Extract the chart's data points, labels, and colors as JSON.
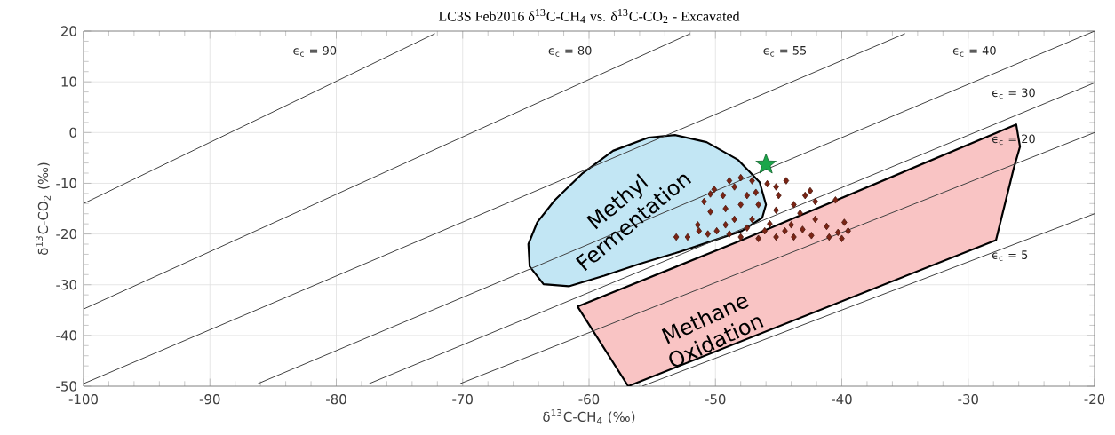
{
  "chart_data": {
    "type": "scatter",
    "title": "LC3S Feb2016 δ$^{13}$C-CH$_{4}$ vs. δ$^{13}$C-CO$_{2}$ - Excavated",
    "xlabel": "δ$^{13}$C-CH$_{4}$ (‰)",
    "ylabel": "δ$^{13}$C-CO$_{2}$ (‰)",
    "xlim": [
      -100,
      -20
    ],
    "ylim": [
      -50,
      20
    ],
    "xticks": [
      -100,
      -90,
      -80,
      -70,
      -60,
      -50,
      -40,
      -30,
      -20
    ],
    "yticks": [
      -50,
      -40,
      -30,
      -20,
      -10,
      0,
      10,
      20
    ],
    "grid": true,
    "series": [
      {
        "type": "area",
        "color": "#c2e6f4",
        "x": [
          -63.6,
          -64.7,
          -64.8,
          -64.1,
          -62.7,
          -60.5,
          -58.1,
          -55.3,
          -53.2,
          -50.7,
          -48.2,
          -46.5,
          -46.0,
          -46.3,
          -47.9,
          -50.4,
          -53.2,
          -56.0,
          -58.8,
          -61.6
        ],
        "values": [
          -29.9,
          -26.4,
          -22.0,
          -17.7,
          -13.3,
          -8.0,
          -3.6,
          -1.0,
          -0.5,
          -1.9,
          -5.4,
          -9.8,
          -14.2,
          -16.8,
          -19.4,
          -21.5,
          -23.8,
          -25.9,
          -28.2,
          -30.3
        ]
      },
      {
        "type": "area",
        "color": "#f9c4c4",
        "x": [
          -60.9,
          -48.3,
          -26.2,
          -25.9,
          -26.4,
          -27.8,
          -56.9
        ],
        "values": [
          -34.3,
          -21.6,
          1.6,
          -2.8,
          -7.1,
          -21.2,
          -50
        ]
      },
      {
        "type": "line",
        "color": "#404040",
        "x": [
          -100,
          -72.2
        ],
        "values": [
          -14,
          19.5
        ]
      },
      {
        "type": "line",
        "color": "#404040",
        "x": [
          -100,
          -52.0
        ],
        "values": [
          -34.8,
          19.5
        ]
      },
      {
        "type": "line",
        "color": "#404040",
        "x": [
          -100,
          -35.0
        ],
        "values": [
          -49.5,
          19.5
        ]
      },
      {
        "type": "line",
        "color": "#404040",
        "x": [
          -86.2,
          -20
        ],
        "values": [
          -49.5,
          20
        ]
      },
      {
        "type": "line",
        "color": "#404040",
        "x": [
          -77.4,
          -20
        ],
        "values": [
          -49.5,
          9.8
        ]
      },
      {
        "type": "line",
        "color": "#404040",
        "x": [
          -70.2,
          -20
        ],
        "values": [
          -49.5,
          0
        ]
      },
      {
        "type": "line",
        "color": "#404040",
        "x": [
          -55.8,
          -20
        ],
        "values": [
          -50,
          -16
        ]
      },
      {
        "marker": "diamond",
        "color": "#7a2414",
        "x": [
          -53.1,
          -52.2,
          -51.4,
          -50.9,
          -50.4,
          -50.4,
          -50.1,
          -49.4,
          -49.2,
          -48.9,
          -48.5,
          -48.0,
          -47.5,
          -48.0,
          -48.5,
          -49.2,
          -49.9,
          -50.6,
          -51.3,
          -47.1,
          -46.8,
          -46.6,
          -47.1,
          -47.5,
          -45.9,
          -45.2,
          -44.4,
          -45.0,
          -43.8,
          -42.9,
          -42.5,
          -42.1,
          -40.5,
          -45.2,
          -43.3,
          -42.1,
          -41.2,
          -39.8,
          -39.5,
          -48.0,
          -46.6,
          -45.2,
          -43.8,
          -42.4,
          -41.0,
          -40.0,
          -44.5,
          -46.1,
          -43.1,
          -48.9,
          -40.3,
          -44.0,
          -45.7
        ],
        "values": [
          -20.6,
          -20.6,
          -18.2,
          -13.6,
          -12.1,
          -15.6,
          -11.2,
          -12.4,
          -15.0,
          -9.5,
          -10.7,
          -8.9,
          -12.4,
          -14.2,
          -17.1,
          -18.2,
          -19.4,
          -20.0,
          -19.4,
          -9.5,
          -11.8,
          -14.2,
          -17.1,
          -18.8,
          -10.1,
          -10.7,
          -9.5,
          -12.4,
          -14.2,
          -12.4,
          -11.5,
          -13.6,
          -13.3,
          -15.3,
          -15.9,
          -17.1,
          -18.5,
          -17.7,
          -19.4,
          -20.6,
          -20.9,
          -20.6,
          -20.6,
          -20.3,
          -20.6,
          -20.9,
          -19.4,
          -19.4,
          -19.1,
          -20.0,
          -19.7,
          -18.2,
          -18.0
        ]
      },
      {
        "marker": "star",
        "color": "#1aa64a",
        "x": [
          -46.0
        ],
        "values": [
          -6.3
        ]
      }
    ],
    "annotations": [
      "ϵ$_{c}$ = 90",
      "ϵ$_{c}$ = 80",
      "ϵ$_{c}$ = 55",
      "ϵ$_{c}$ = 40",
      "ϵ$_{c}$ = 30",
      "ϵ$_{c}$ = 20",
      "ϵ$_{c}$ = 5",
      "Methyl Fermentation",
      "Methane Oxidation"
    ]
  }
}
